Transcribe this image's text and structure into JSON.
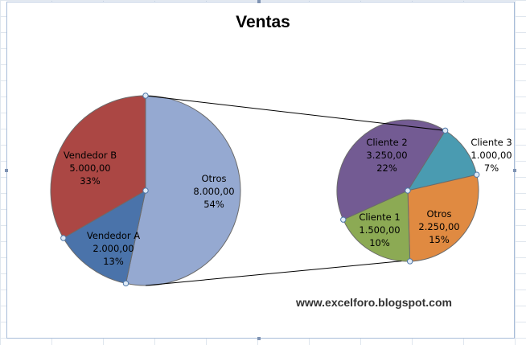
{
  "chart_data": {
    "type": "pie",
    "subtype": "pie-of-pie",
    "title": "Ventas",
    "primary": {
      "slices": [
        {
          "name": "Otros",
          "value_label": "8.000,00",
          "percent_label": "54%",
          "value": 8000,
          "color": "#95a9d1"
        },
        {
          "name": "Vendedor A",
          "value_label": "2.000,00",
          "percent_label": "13%",
          "value": 2000,
          "color": "#4a73aa"
        },
        {
          "name": "Vendedor B",
          "value_label": "5.000,00",
          "percent_label": "33%",
          "value": 5000,
          "color": "#ab4744"
        }
      ]
    },
    "secondary": {
      "slices": [
        {
          "name": "Cliente 3",
          "value_label": "1.000,00",
          "percent_label": "7%",
          "value": 1000,
          "color": "#4a9bb1"
        },
        {
          "name": "Otros",
          "value_label": "2.250,00",
          "percent_label": "15%",
          "value": 2250,
          "color": "#e08a41"
        },
        {
          "name": "Cliente 1",
          "value_label": "1.500,00",
          "percent_label": "10%",
          "value": 1500,
          "color": "#8caa54"
        },
        {
          "name": "Cliente 2",
          "value_label": "3.250,00",
          "percent_label": "22%",
          "value": 3250,
          "color": "#735b93"
        }
      ]
    },
    "legend": "none",
    "grid": false
  },
  "footer": {
    "link_text": "www.excelforo.blogspot.com"
  },
  "colors": {
    "gridline": "#dfe6ee",
    "chart_border": "#a8bcd8",
    "connector": "#000000"
  }
}
